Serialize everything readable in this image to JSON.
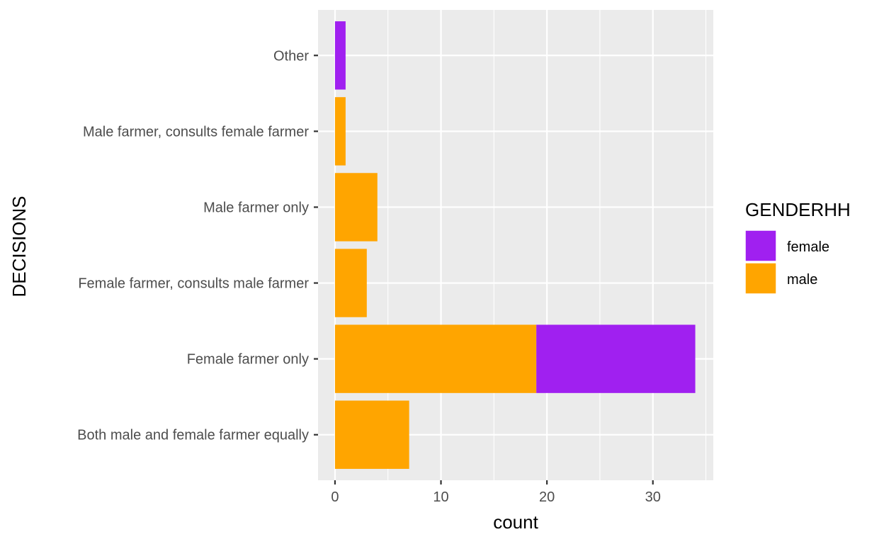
{
  "chart_data": {
    "type": "bar",
    "orientation": "horizontal",
    "stacked": true,
    "xlabel": "count",
    "ylabel": "DECISIONS",
    "xlim": [
      -1.6,
      35.7
    ],
    "xticks": [
      0,
      10,
      20,
      30
    ],
    "grid": true,
    "legend": {
      "title": "GENDERHH",
      "position": "right"
    },
    "categories": [
      "Both male and female farmer equally",
      "Female farmer only",
      "Female farmer, consults male farmer",
      "Male farmer only",
      "Male farmer, consults female farmer",
      "Other"
    ],
    "series": [
      {
        "name": "male",
        "color": "#ffa500",
        "values": [
          7,
          19,
          3,
          4,
          1,
          0
        ]
      },
      {
        "name": "female",
        "color": "#a020f0",
        "values": [
          0,
          15,
          0,
          0,
          0,
          1
        ]
      }
    ],
    "legend_order": [
      "female",
      "male"
    ]
  }
}
